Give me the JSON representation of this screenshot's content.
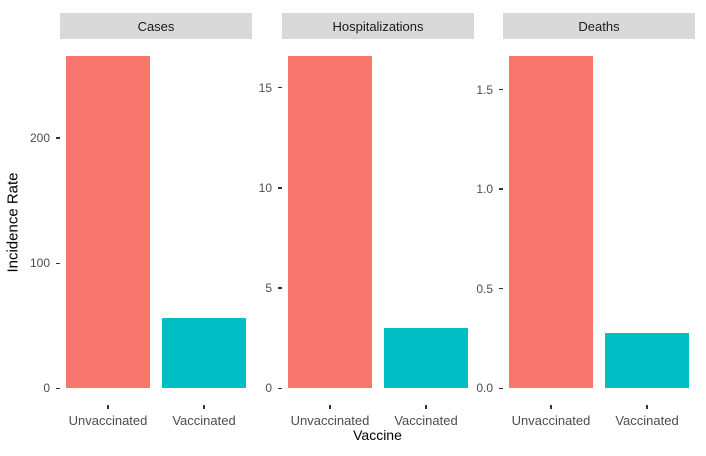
{
  "chart_data": {
    "type": "bar",
    "faceted": true,
    "facet_titles": [
      "Cases",
      "Hospitalizations",
      "Deaths"
    ],
    "categories": [
      "Unvaccinated",
      "Vaccinated"
    ],
    "xlabel": "Vaccine",
    "ylabel": "Incidence Rate",
    "legend_position": "none",
    "grid": false,
    "bar_colors": [
      "#F8766D",
      "#00BFC4"
    ],
    "facets": [
      {
        "title": "Cases",
        "values": [
          266,
          56
        ],
        "yticks": [
          0,
          100,
          200
        ],
        "ytick_labels": [
          "0",
          "100",
          "200"
        ],
        "ylim": [
          -13.3,
          279.3
        ]
      },
      {
        "title": "Hospitalizations",
        "values": [
          16.6,
          3.0
        ],
        "yticks": [
          0,
          5,
          10,
          15
        ],
        "ytick_labels": [
          "0",
          "5",
          "10",
          "15"
        ],
        "ylim": [
          -0.83,
          17.43
        ]
      },
      {
        "title": "Deaths",
        "values": [
          1.67,
          0.28
        ],
        "yticks": [
          0,
          0.5,
          1.0,
          1.5
        ],
        "ytick_labels": [
          "0.0",
          "0.5",
          "1.0",
          "1.5"
        ],
        "ylim": [
          -0.084,
          1.754
        ]
      }
    ]
  },
  "style": {
    "unvaccinated_bar_color": "#F8766D",
    "vaccinated_bar_color": "#00BFC4",
    "strip_fill": "#D9D9D9",
    "strip_text_color": "#1A1A1A",
    "axis_text_color": "#4D4D4D",
    "tick_mark_color": "#333333",
    "axis_title_color": "#000000",
    "panel_background": "#FFFFFF"
  }
}
